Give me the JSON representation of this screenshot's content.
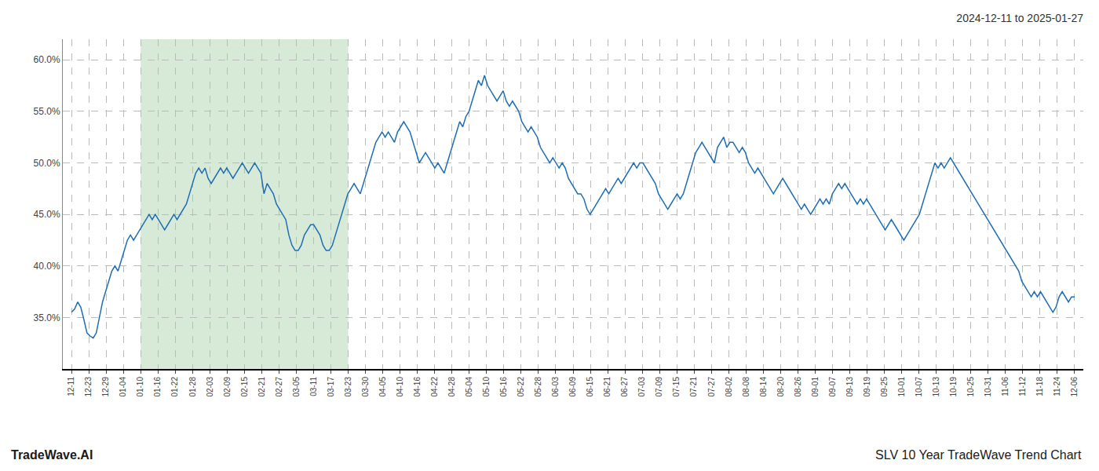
{
  "chart_data": {
    "type": "line",
    "title": "2024-12-11 to 2025-01-27",
    "annotations": [
      "TradeWave.AI",
      "SLV 10 Year TradeWave Trend Chart"
    ],
    "color": "#1f6db5",
    "background_color": "#ffffff",
    "grid": true,
    "grid_color": "#bbbbbb",
    "highlight": {
      "start": 4,
      "end": 16,
      "color": "#d6ead7"
    },
    "xlim": [
      -0.5,
      58.5
    ],
    "xticks": [
      {
        "value": 0,
        "label": "12-11"
      },
      {
        "value": 1,
        "label": "12-23"
      },
      {
        "value": 2,
        "label": "12-29"
      },
      {
        "value": 3,
        "label": "01-04"
      },
      {
        "value": 4,
        "label": "01-10"
      },
      {
        "value": 5,
        "label": "01-16"
      },
      {
        "value": 6,
        "label": "01-22"
      },
      {
        "value": 7,
        "label": "01-28"
      },
      {
        "value": 8,
        "label": "02-03"
      },
      {
        "value": 9,
        "label": "02-09"
      },
      {
        "value": 10,
        "label": "02-15"
      },
      {
        "value": 11,
        "label": "02-21"
      },
      {
        "value": 12,
        "label": "02-27"
      },
      {
        "value": 13,
        "label": "03-05"
      },
      {
        "value": 14,
        "label": "03-11"
      },
      {
        "value": 15,
        "label": "03-17"
      },
      {
        "value": 16,
        "label": "03-23"
      },
      {
        "value": 17,
        "label": "03-30"
      },
      {
        "value": 18,
        "label": "04-05"
      },
      {
        "value": 19,
        "label": "04-10"
      },
      {
        "value": 20,
        "label": "04-16"
      },
      {
        "value": 21,
        "label": "04-22"
      },
      {
        "value": 22,
        "label": "04-28"
      },
      {
        "value": 23,
        "label": "05-04"
      },
      {
        "value": 24,
        "label": "05-10"
      },
      {
        "value": 25,
        "label": "05-16"
      },
      {
        "value": 26,
        "label": "05-22"
      },
      {
        "value": 27,
        "label": "05-28"
      },
      {
        "value": 28,
        "label": "06-03"
      },
      {
        "value": 29,
        "label": "06-09"
      },
      {
        "value": 30,
        "label": "06-15"
      },
      {
        "value": 31,
        "label": "06-21"
      },
      {
        "value": 32,
        "label": "06-27"
      },
      {
        "value": 33,
        "label": "07-03"
      },
      {
        "value": 34,
        "label": "07-09"
      },
      {
        "value": 35,
        "label": "07-15"
      },
      {
        "value": 36,
        "label": "07-21"
      },
      {
        "value": 37,
        "label": "07-27"
      },
      {
        "value": 38,
        "label": "08-02"
      },
      {
        "value": 39,
        "label": "08-08"
      },
      {
        "value": 40,
        "label": "08-14"
      },
      {
        "value": 41,
        "label": "08-20"
      },
      {
        "value": 42,
        "label": "08-26"
      },
      {
        "value": 43,
        "label": "09-01"
      },
      {
        "value": 44,
        "label": "09-07"
      },
      {
        "value": 45,
        "label": "09-13"
      },
      {
        "value": 46,
        "label": "09-19"
      },
      {
        "value": 47,
        "label": "09-25"
      },
      {
        "value": 48,
        "label": "10-01"
      },
      {
        "value": 49,
        "label": "10-07"
      },
      {
        "value": 50,
        "label": "10-13"
      },
      {
        "value": 51,
        "label": "10-19"
      },
      {
        "value": 52,
        "label": "10-25"
      },
      {
        "value": 53,
        "label": "10-31"
      },
      {
        "value": 54,
        "label": "11-06"
      },
      {
        "value": 55,
        "label": "11-12"
      },
      {
        "value": 56,
        "label": "11-18"
      },
      {
        "value": 57,
        "label": "11-24"
      },
      {
        "value": 58,
        "label": "12-06"
      }
    ],
    "ylim": [
      30.0,
      62.0
    ],
    "yticks": [
      {
        "value": 35.0,
        "label": "35.0%"
      },
      {
        "value": 40.0,
        "label": "40.0%"
      },
      {
        "value": 45.0,
        "label": "45.0%"
      },
      {
        "value": 50.0,
        "label": "50.0%"
      },
      {
        "value": 55.0,
        "label": "55.0%"
      },
      {
        "value": 60.0,
        "label": "60.0%"
      }
    ],
    "values": [
      35.5,
      35.8,
      36.5,
      36.0,
      34.8,
      33.5,
      33.2,
      33.0,
      33.5,
      35.0,
      36.5,
      37.5,
      38.5,
      39.5,
      40.0,
      39.5,
      40.5,
      41.5,
      42.5,
      43.0,
      42.5,
      43.0,
      43.5,
      44.0,
      44.5,
      45.0,
      44.5,
      45.0,
      44.5,
      44.0,
      43.5,
      44.0,
      44.5,
      45.0,
      44.5,
      45.0,
      45.5,
      46.0,
      47.0,
      48.0,
      49.0,
      49.5,
      49.0,
      49.5,
      48.5,
      48.0,
      48.5,
      49.0,
      49.5,
      49.0,
      49.5,
      49.0,
      48.5,
      49.0,
      49.5,
      50.0,
      49.5,
      49.0,
      49.5,
      50.0,
      49.5,
      49.0,
      47.0,
      48.0,
      47.5,
      47.0,
      46.0,
      45.5,
      45.0,
      44.5,
      43.0,
      42.0,
      41.5,
      41.5,
      42.0,
      43.0,
      43.5,
      44.0,
      44.0,
      43.5,
      43.0,
      42.0,
      41.5,
      41.5,
      42.0,
      43.0,
      44.0,
      45.0,
      46.0,
      47.0,
      47.5,
      48.0,
      47.5,
      47.0,
      48.0,
      49.0,
      50.0,
      51.0,
      52.0,
      52.5,
      53.0,
      52.5,
      53.0,
      52.5,
      52.0,
      53.0,
      53.5,
      54.0,
      53.5,
      53.0,
      52.0,
      51.0,
      50.0,
      50.5,
      51.0,
      50.5,
      50.0,
      49.5,
      50.0,
      49.5,
      49.0,
      50.0,
      51.0,
      52.0,
      53.0,
      54.0,
      53.5,
      54.5,
      55.0,
      56.0,
      57.0,
      58.0,
      57.5,
      58.5,
      57.5,
      57.0,
      56.5,
      56.0,
      56.5,
      57.0,
      56.0,
      55.5,
      56.0,
      55.5,
      55.0,
      54.0,
      53.5,
      53.0,
      53.5,
      53.0,
      52.5,
      51.5,
      51.0,
      50.5,
      50.0,
      50.5,
      50.0,
      49.5,
      50.0,
      49.5,
      48.5,
      48.0,
      47.5,
      47.0,
      47.0,
      46.5,
      45.5,
      45.0,
      45.5,
      46.0,
      46.5,
      47.0,
      47.5,
      47.0,
      47.5,
      48.0,
      48.5,
      48.0,
      48.5,
      49.0,
      49.5,
      50.0,
      49.5,
      50.0,
      50.0,
      49.5,
      49.0,
      48.5,
      48.0,
      47.0,
      46.5,
      46.0,
      45.5,
      46.0,
      46.5,
      47.0,
      46.5,
      47.0,
      48.0,
      49.0,
      50.0,
      51.0,
      51.5,
      52.0,
      51.5,
      51.0,
      50.5,
      50.0,
      51.5,
      52.0,
      52.5,
      51.5,
      52.0,
      52.0,
      51.5,
      51.0,
      51.5,
      51.0,
      50.0,
      49.5,
      49.0,
      49.5,
      49.0,
      48.5,
      48.0,
      47.5,
      47.0,
      47.5,
      48.0,
      48.5,
      48.0,
      47.5,
      47.0,
      46.5,
      46.0,
      45.5,
      46.0,
      45.5,
      45.0,
      45.5,
      46.0,
      46.5,
      46.0,
      46.5,
      46.0,
      47.0,
      47.5,
      48.0,
      47.5,
      48.0,
      47.5,
      47.0,
      46.5,
      46.0,
      46.5,
      46.0,
      46.5,
      46.0,
      45.5,
      45.0,
      44.5,
      44.0,
      43.5,
      44.0,
      44.5,
      44.0,
      43.5,
      43.0,
      42.5,
      43.0,
      43.5,
      44.0,
      44.5,
      45.0,
      46.0,
      47.0,
      48.0,
      49.0,
      50.0,
      49.5,
      50.0,
      49.5,
      50.0,
      50.5,
      50.0,
      49.5,
      49.0,
      48.5,
      48.0,
      47.5,
      47.0,
      46.5,
      46.0,
      45.5,
      45.0,
      44.5,
      44.0,
      43.5,
      43.0,
      42.5,
      42.0,
      41.5,
      41.0,
      40.5,
      40.0,
      39.5,
      38.5,
      38.0,
      37.5,
      37.0,
      37.5,
      37.0,
      37.5,
      37.0,
      36.5,
      36.0,
      35.5,
      36.0,
      37.0,
      37.5,
      37.0,
      36.5,
      37.0,
      37.0
    ]
  }
}
